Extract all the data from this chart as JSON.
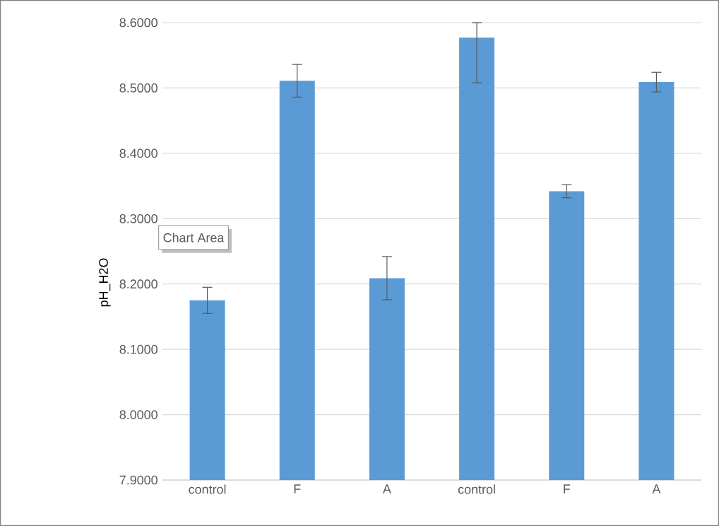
{
  "chart_data": {
    "type": "bar",
    "ylabel": "pH_H2O",
    "categories": [
      "control",
      "F",
      "A",
      "control",
      "F",
      "A"
    ],
    "values": [
      8.175,
      8.511,
      8.209,
      8.577,
      8.342,
      8.509
    ],
    "errors": [
      0.02,
      0.025,
      0.033,
      [
        8.508,
        8.6
      ],
      0.01,
      0.015
    ],
    "color": "#5b9bd5",
    "ylim": [
      7.9,
      8.6
    ],
    "yticks": [
      {
        "value": 7.9,
        "label": "7.9000"
      },
      {
        "value": 8.0,
        "label": "8.0000"
      },
      {
        "value": 8.1,
        "label": "8.1000"
      },
      {
        "value": 8.2,
        "label": "8.2000"
      },
      {
        "value": 8.3,
        "label": "8.3000"
      },
      {
        "value": 8.4,
        "label": "8.4000"
      },
      {
        "value": 8.5,
        "label": "8.5000"
      },
      {
        "value": 8.6,
        "label": "8.6000"
      }
    ],
    "grid": "y",
    "annotations": [
      "Chart Area"
    ]
  }
}
